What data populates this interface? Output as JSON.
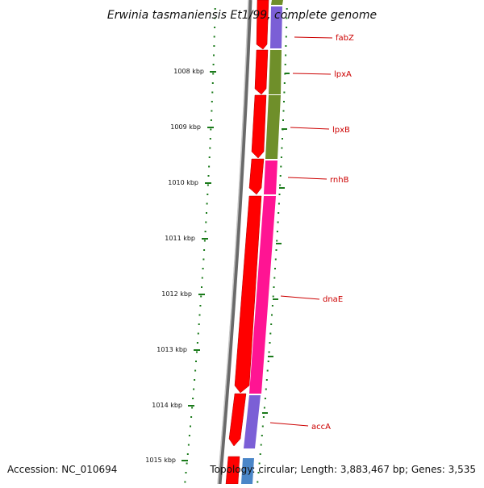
{
  "title": "Erwinia tasmaniensis Et1/99, complete genome",
  "footer": {
    "accession": "Accession: NC_010694",
    "topology": "Topology: circular; Length: 3,883,467 bp; Genes: 3,535"
  },
  "ticks": [
    "1008 kbp",
    "1009 kbp",
    "1010 kbp",
    "1011 kbp",
    "1012 kbp",
    "1013 kbp",
    "1014 kbp",
    "1015 kbp"
  ],
  "genes": [
    {
      "name": "fabZ",
      "color": "#7b5fd6"
    },
    {
      "name": "lpxA",
      "color": "#6f8f2a"
    },
    {
      "name": "lpxB",
      "color": "#6f8f2a"
    },
    {
      "name": "rnhB",
      "color": "#ff1493"
    },
    {
      "name": "dnaE",
      "color": "#ff1493"
    },
    {
      "name": "accA",
      "color": "#7b5fd6"
    }
  ],
  "colors": {
    "cds_strand": "#ff0000",
    "backbone": "#888888",
    "tick": "#1a7a1a",
    "label": "#cc0000"
  }
}
